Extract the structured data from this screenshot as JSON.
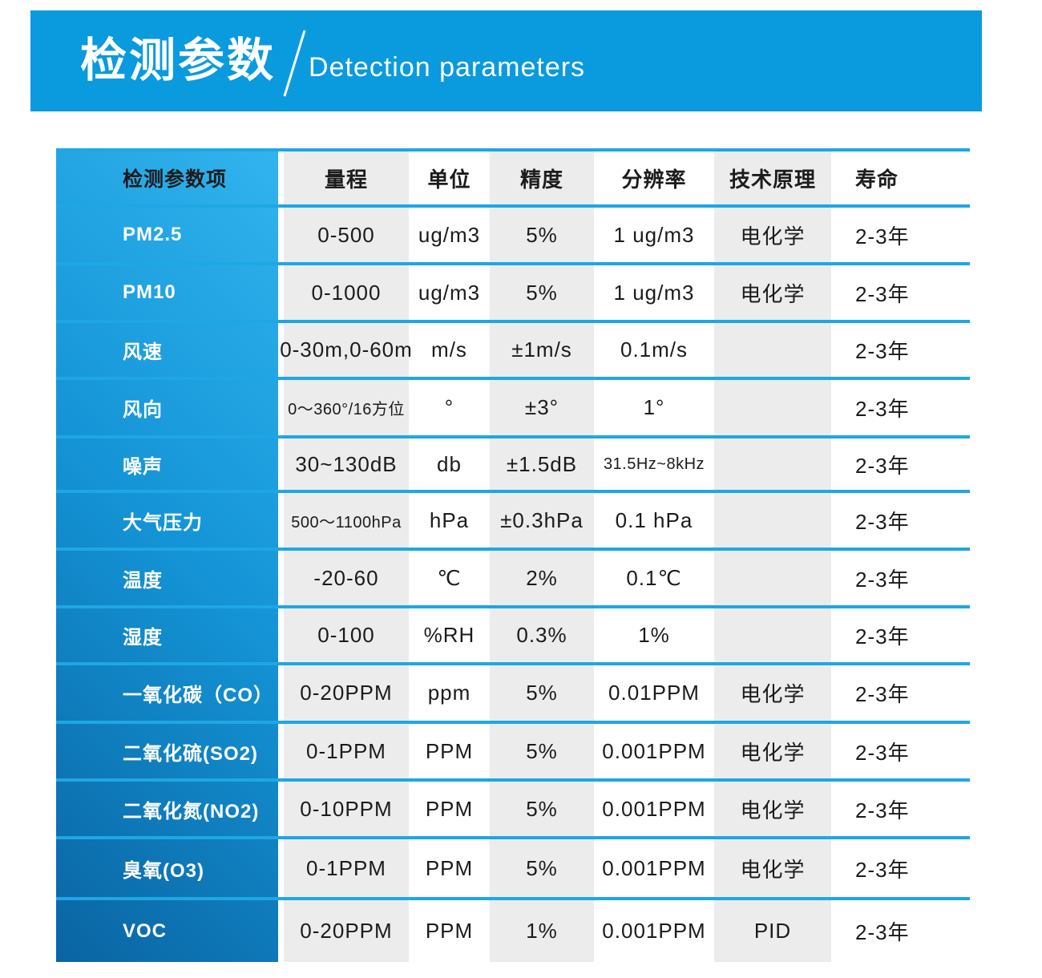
{
  "banner": {
    "title_cn": "检测参数",
    "title_en": "Detection parameters"
  },
  "colors": {
    "banner_blue": "#0a9ade",
    "line_blue": "#1ea7e4",
    "stripe_gray": "#ececec",
    "name_column_gradient_light": "#31b4ef",
    "name_column_gradient_dark": "#0a64a2",
    "body_text": "#1b1b1b",
    "name_text": "#ffffff"
  },
  "table": {
    "headers": [
      "检测参数项",
      "量程",
      "单位",
      "精度",
      "分辨率",
      "技术原理",
      "寿命"
    ],
    "rows": [
      {
        "name": "PM2.5",
        "range": "0-500",
        "unit": "ug/m3",
        "accuracy": "5%",
        "resolution": "1 ug/m3",
        "principle": "电化学",
        "life": "2-3年",
        "small": []
      },
      {
        "name": "PM10",
        "range": "0-1000",
        "unit": "ug/m3",
        "accuracy": "5%",
        "resolution": "1 ug/m3",
        "principle": "电化学",
        "life": "2-3年",
        "small": []
      },
      {
        "name": "风速",
        "range": "0-30m,0-60m",
        "unit": "m/s",
        "accuracy": "±1m/s",
        "resolution": "0.1m/s",
        "principle": "",
        "life": "2-3年",
        "small": []
      },
      {
        "name": "风向",
        "range": "0～360°/16方位",
        "unit": "°",
        "accuracy": "±3°",
        "resolution": "1°",
        "principle": "",
        "life": "2-3年",
        "small": [
          "range"
        ]
      },
      {
        "name": "噪声",
        "range": "30~130dB",
        "unit": "db",
        "accuracy": "±1.5dB",
        "resolution": "31.5Hz~8kHz",
        "principle": "",
        "life": "2-3年",
        "small": [
          "resolution"
        ]
      },
      {
        "name": "大气压力",
        "range": "500～1100hPa",
        "unit": "hPa",
        "accuracy": "±0.3hPa",
        "resolution": "0.1 hPa",
        "principle": "",
        "life": "2-3年",
        "small": [
          "range"
        ]
      },
      {
        "name": "温度",
        "range": "-20-60",
        "unit": "℃",
        "accuracy": "2%",
        "resolution": "0.1℃",
        "principle": "",
        "life": "2-3年",
        "small": []
      },
      {
        "name": "湿度",
        "range": "0-100",
        "unit": "%RH",
        "accuracy": "0.3%",
        "resolution": "1%",
        "principle": "",
        "life": "2-3年",
        "small": []
      },
      {
        "name": "一氧化碳（CO）",
        "range": "0-20PPM",
        "unit": "ppm",
        "accuracy": "5%",
        "resolution": "0.01PPM",
        "principle": "电化学",
        "life": "2-3年",
        "small": []
      },
      {
        "name": "二氧化硫(SO2)",
        "range": "0-1PPM",
        "unit": "PPM",
        "accuracy": "5%",
        "resolution": "0.001PPM",
        "principle": "电化学",
        "life": "2-3年",
        "small": []
      },
      {
        "name": "二氧化氮(NO2)",
        "range": "0-10PPM",
        "unit": "PPM",
        "accuracy": "5%",
        "resolution": "0.001PPM",
        "principle": "电化学",
        "life": "2-3年",
        "small": []
      },
      {
        "name": "臭氧(O3)",
        "range": "0-1PPM",
        "unit": "PPM",
        "accuracy": "5%",
        "resolution": "0.001PPM",
        "principle": "电化学",
        "life": "2-3年",
        "small": []
      },
      {
        "name": "VOC",
        "range": "0-20PPM",
        "unit": "PPM",
        "accuracy": "1%",
        "resolution": "0.001PPM",
        "principle": "PID",
        "life": "2-3年",
        "small": []
      }
    ]
  }
}
